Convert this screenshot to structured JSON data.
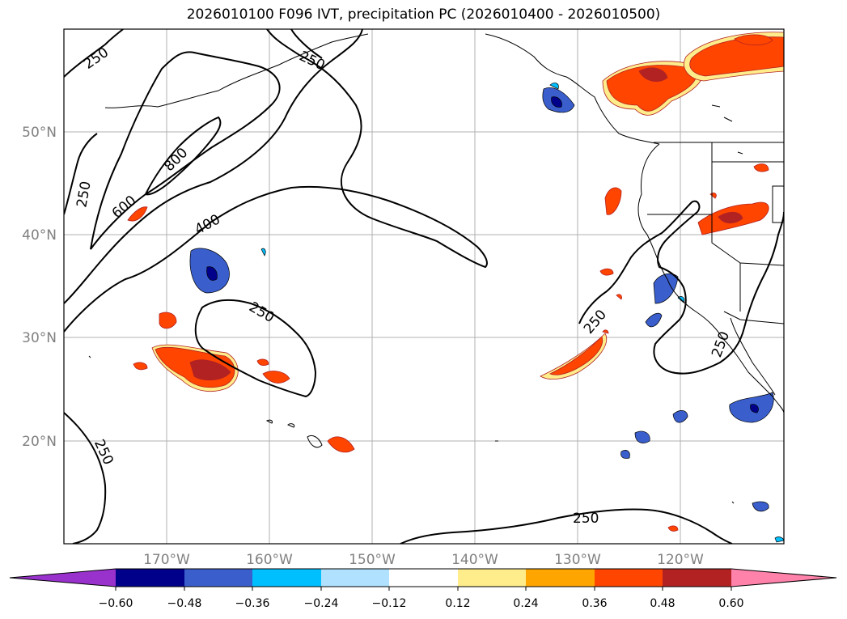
{
  "title": "2026010100 F096 IVT, precipitation PC (2026010400 - 2026010500)",
  "map": {
    "lat_labels": [
      "50°N",
      "40°N",
      "30°N",
      "20°N"
    ],
    "lon_labels": [
      "170°W",
      "160°W",
      "150°W",
      "140°W",
      "130°W",
      "120°W"
    ],
    "ivt_contour_labels": [
      "250",
      "250",
      "250",
      "800",
      "600",
      "400",
      "250",
      "250",
      "250",
      "250",
      "250"
    ]
  },
  "colorbar": {
    "ticks": [
      "−0.60",
      "−0.48",
      "−0.36",
      "−0.24",
      "−0.12",
      "0.12",
      "0.24",
      "0.36",
      "0.48",
      "0.60"
    ],
    "colors": [
      "#9932cc",
      "#00008b",
      "#3a5fcd",
      "#00bfff",
      "#b0e2ff",
      "#ffffff",
      "#ffec8b",
      "#ffa500",
      "#ff4500",
      "#b22222",
      "#ff82ab"
    ]
  },
  "chart_data": {
    "type": "contour-map",
    "title": "2026010100 F096 IVT, precipitation PC (2026010400 - 2026010500)",
    "lat_range": [
      10,
      60
    ],
    "lon_range": [
      -180,
      -110
    ],
    "lat_ticks": [
      20,
      30,
      40,
      50
    ],
    "lon_ticks": [
      -170,
      -160,
      -150,
      -140,
      -130,
      -120
    ],
    "ivt_contour_levels": [
      250,
      400,
      600,
      800
    ],
    "precip_pc_levels": [
      -0.6,
      -0.48,
      -0.36,
      -0.24,
      -0.12,
      0.12,
      0.24,
      0.36,
      0.48,
      0.6
    ]
  }
}
